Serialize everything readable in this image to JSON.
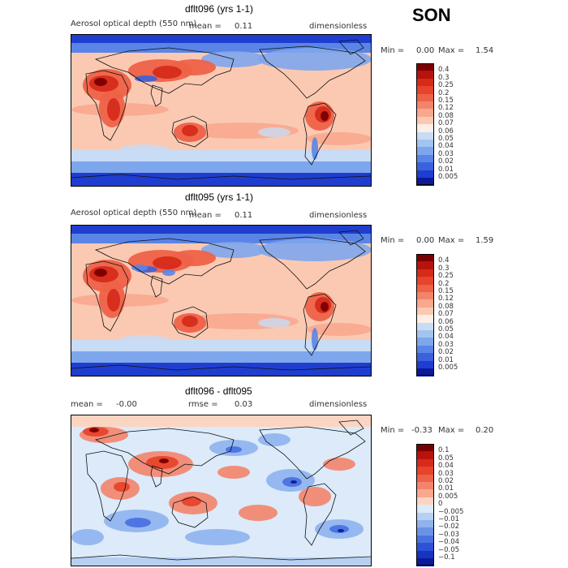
{
  "season": "SON",
  "panels": [
    {
      "title": "dflt096 (yrs 1-1)",
      "variable": "Aerosol optical depth (550 nm)",
      "mean_label": "mean =",
      "mean_value": "0.11",
      "units": "dimensionless",
      "min_label": "Min =",
      "min_value": "0.00",
      "max_label": "Max =",
      "max_value": "1.54"
    },
    {
      "title": "dflt095 (yrs 1-1)",
      "variable": "Aerosol optical depth (550 nm)",
      "mean_label": "mean =",
      "mean_value": "0.11",
      "units": "dimensionless",
      "min_label": "Min =",
      "min_value": "0.00",
      "max_label": "Max =",
      "max_value": "1.59"
    },
    {
      "title": "dflt096 - dflt095",
      "mean_label": "mean =",
      "mean_value": "-0.00",
      "rmse_label": "rmse =",
      "rmse_value": "0.03",
      "units": "dimensionless",
      "min_label": "Min =",
      "min_value": "-0.33",
      "max_label": "Max =",
      "max_value": "0.20"
    }
  ],
  "colorbars": {
    "aod": {
      "labels": [
        "0.4",
        "0.3",
        "0.25",
        "0.2",
        "0.15",
        "0.12",
        "0.08",
        "0.07",
        "0.06",
        "0.05",
        "0.04",
        "0.03",
        "0.02",
        "0.01",
        "0.005"
      ],
      "colors": [
        "#7a0000",
        "#b8120c",
        "#d62b1a",
        "#e6442c",
        "#ee6248",
        "#f3846b",
        "#f8a88e",
        "#fbc9b2",
        "#fdeee6",
        "#c8dcf5",
        "#a3c4f0",
        "#7ea6ec",
        "#5a85e6",
        "#3a62dc",
        "#1f3ed0",
        "#0b1a9a"
      ]
    },
    "diff": {
      "labels": [
        "0.1",
        "0.05",
        "0.04",
        "0.03",
        "0.02",
        "0.01",
        "0.005",
        "0",
        "-0.005",
        "-0.01",
        "-0.02",
        "-0.03",
        "-0.04",
        "-0.05",
        "-0.1"
      ],
      "colors": [
        "#7a0000",
        "#b8120c",
        "#d62b1a",
        "#e6442c",
        "#ee6248",
        "#f3846b",
        "#f8a88e",
        "#fbd5c2",
        "#dceaf9",
        "#b6d0f3",
        "#8eb3ee",
        "#6a93e8",
        "#4a72e0",
        "#2d52d6",
        "#1633c2",
        "#0b1a9a"
      ]
    }
  },
  "chart_data": [
    {
      "type": "heatmap",
      "title": "dflt096 (yrs 1-1)",
      "subtitle": "Aerosol optical depth (550 nm)",
      "units": "dimensionless",
      "mean": 0.11,
      "min": 0.0,
      "max": 1.54,
      "contour_levels": [
        0.005,
        0.01,
        0.02,
        0.03,
        0.04,
        0.05,
        0.06,
        0.07,
        0.08,
        0.12,
        0.15,
        0.2,
        0.25,
        0.3,
        0.4
      ]
    },
    {
      "type": "heatmap",
      "title": "dflt095 (yrs 1-1)",
      "subtitle": "Aerosol optical depth (550 nm)",
      "units": "dimensionless",
      "mean": 0.11,
      "min": 0.0,
      "max": 1.59,
      "contour_levels": [
        0.005,
        0.01,
        0.02,
        0.03,
        0.04,
        0.05,
        0.06,
        0.07,
        0.08,
        0.12,
        0.15,
        0.2,
        0.25,
        0.3,
        0.4
      ]
    },
    {
      "type": "heatmap",
      "title": "dflt096 - dflt095",
      "units": "dimensionless",
      "mean": -0.0,
      "rmse": 0.03,
      "min": -0.33,
      "max": 0.2,
      "contour_levels": [
        -0.1,
        -0.05,
        -0.04,
        -0.03,
        -0.02,
        -0.01,
        -0.005,
        0,
        0.005,
        0.01,
        0.02,
        0.03,
        0.04,
        0.05,
        0.1
      ]
    }
  ]
}
